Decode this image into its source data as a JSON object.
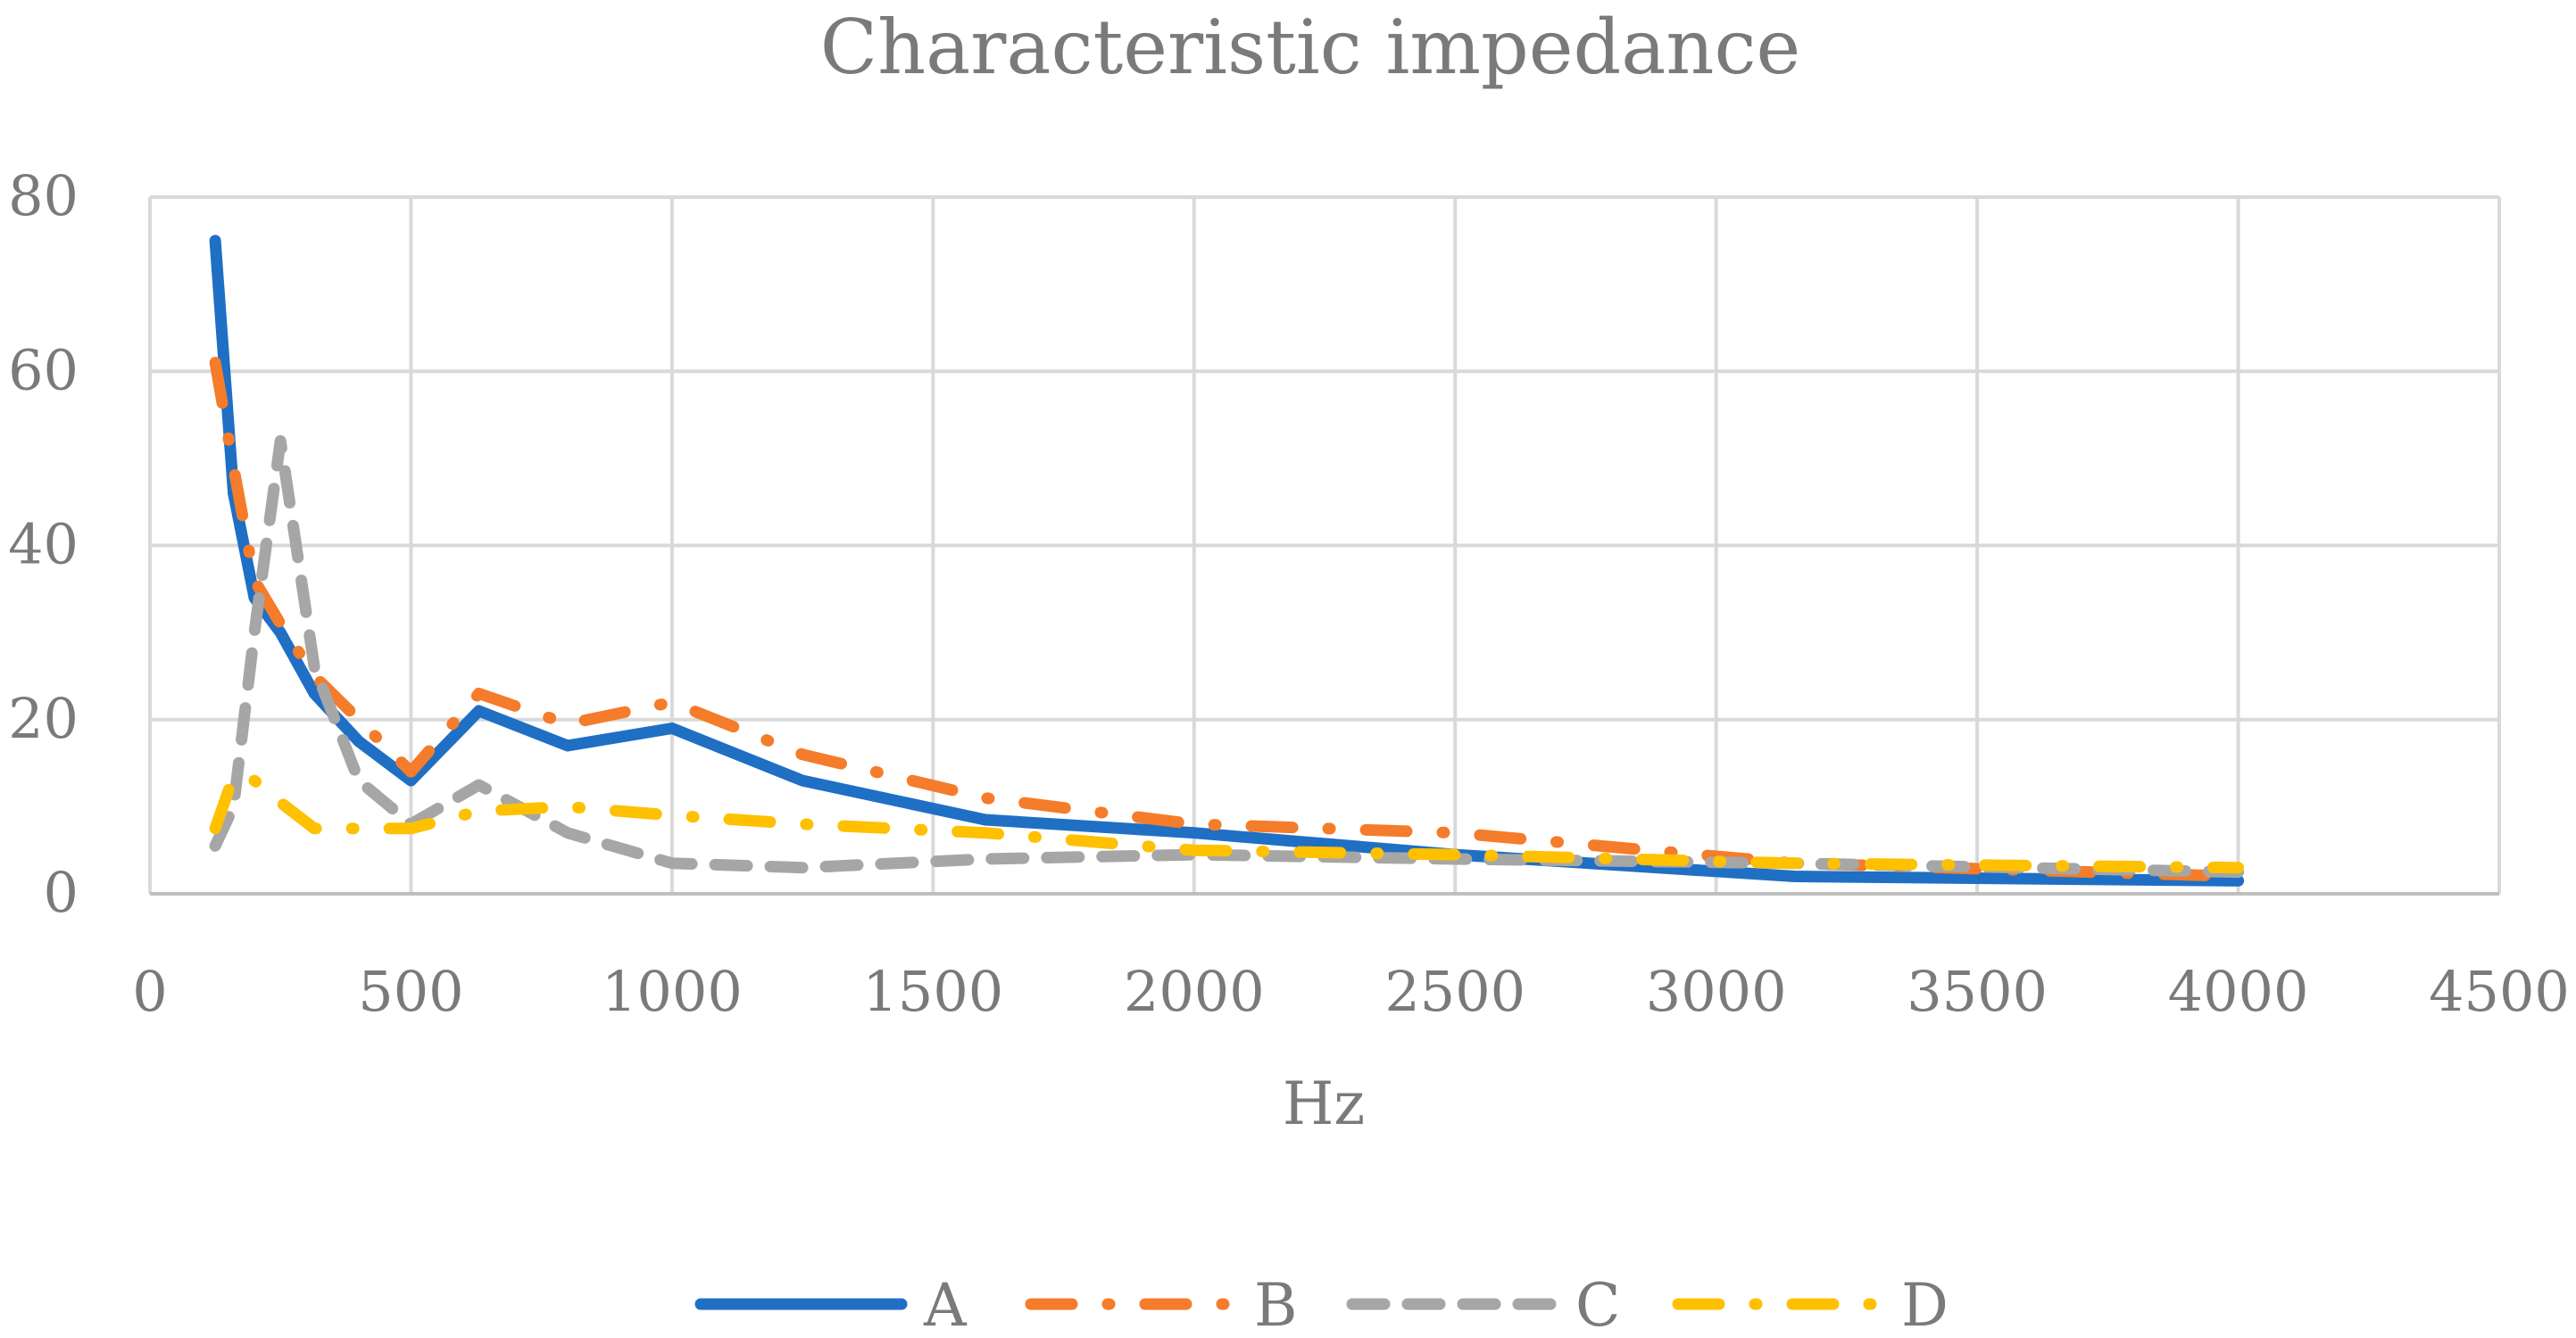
{
  "chart_data": {
    "type": "line",
    "title": "Characteristic impedance",
    "xlabel": "Hz",
    "ylabel": "",
    "xlim": [
      0,
      4500
    ],
    "ylim": [
      0,
      80
    ],
    "xticks": [
      0,
      500,
      1000,
      1500,
      2000,
      2500,
      3000,
      3500,
      4000,
      4500
    ],
    "yticks": [
      0,
      20,
      40,
      60,
      80
    ],
    "grid": true,
    "legend_position": "bottom",
    "x": [
      125,
      160,
      200,
      250,
      315,
      400,
      500,
      630,
      800,
      1000,
      1250,
      1600,
      2000,
      2500,
      3150,
      4000
    ],
    "series": [
      {
        "name": "A",
        "color": "#1f6fc5",
        "dash": "solid",
        "values": [
          75,
          46,
          34,
          30,
          23,
          17.5,
          13,
          21,
          17,
          19,
          13,
          8.5,
          7,
          4.5,
          2,
          1.5
        ]
      },
      {
        "name": "B",
        "color": "#f47c2a",
        "dash": "dash-dot",
        "values": [
          61,
          49,
          36,
          31,
          25,
          20,
          14,
          23,
          19.5,
          22,
          16,
          11,
          8,
          7,
          3.5,
          2
        ]
      },
      {
        "name": "C",
        "color": "#a6a6a6",
        "dash": "dash",
        "values": [
          5.5,
          10,
          30,
          52,
          26,
          13,
          8,
          12.5,
          7,
          3.5,
          3,
          4,
          4.5,
          4,
          3.5,
          2.5
        ]
      },
      {
        "name": "D",
        "color": "#ffc000",
        "dash": "dash-dot",
        "values": [
          7.5,
          13.5,
          13,
          10.5,
          7.5,
          7.5,
          7.5,
          9.5,
          10,
          9,
          8,
          7,
          5,
          4.5,
          3.5,
          3
        ]
      }
    ]
  }
}
